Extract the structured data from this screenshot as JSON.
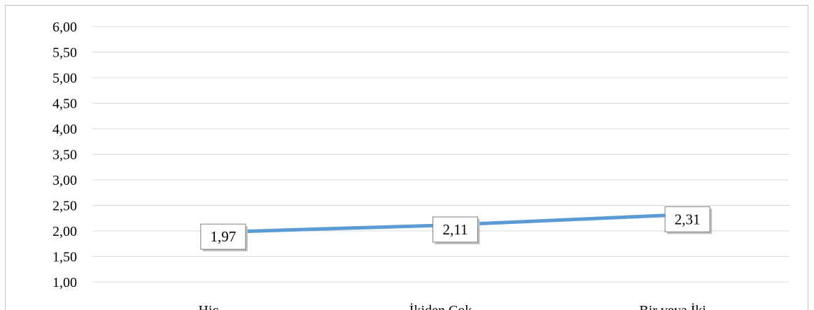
{
  "chart_data": {
    "type": "line",
    "categories": [
      "Hiç",
      "İkiden Çok",
      "Bir veya İki"
    ],
    "series": [
      {
        "values": [
          1.97,
          2.11,
          2.31
        ],
        "color": "#5b9bd5"
      }
    ],
    "data_labels": [
      "1,97",
      "2,11",
      "2,31"
    ],
    "ylim": [
      1.0,
      6.0
    ],
    "yticks": [
      1.0,
      1.5,
      2.0,
      2.5,
      3.0,
      3.5,
      4.0,
      4.5,
      5.0,
      5.5,
      6.0
    ],
    "ytick_labels": [
      "1,00",
      "1,50",
      "2,00",
      "2,50",
      "3,00",
      "3,50",
      "4,00",
      "4,50",
      "5,00",
      "5,50",
      "6,00"
    ],
    "grid": true,
    "legend": "none",
    "gridline_color": "#d9d9d9",
    "label_box_border": "#7f7f7f"
  }
}
